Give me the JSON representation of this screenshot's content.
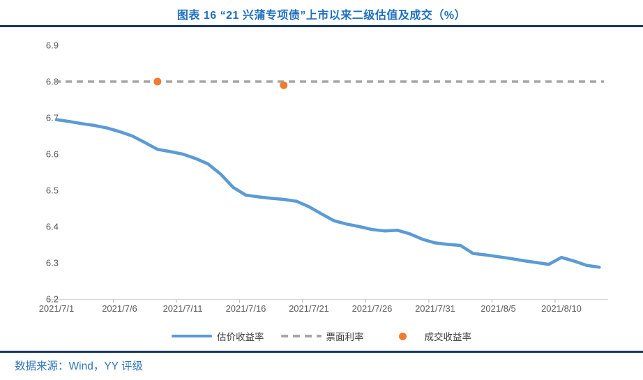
{
  "source": "数据来源：Wind，YY 评级",
  "colors": {
    "title_blue": "#1F6FBE",
    "source_blue": "#2E76B9",
    "divider_navy": "#17375E",
    "line_blue": "#5B9BD5",
    "coupon_gray": "#A6A6A6",
    "trade_orange": "#ED7D31",
    "axis_line": "#D9D9D9",
    "tick_mark": "#BFBFBF",
    "axis_text": "#595959"
  },
  "chart_data": {
    "type": "line",
    "title": "图表 16 “21 兴蒲专项债”上市以来二级估值及成交（%）",
    "x": [
      "2021/7/1",
      "2021/7/2",
      "2021/7/3",
      "2021/7/4",
      "2021/7/5",
      "2021/7/6",
      "2021/7/7",
      "2021/7/8",
      "2021/7/9",
      "2021/7/10",
      "2021/7/11",
      "2021/7/12",
      "2021/7/13",
      "2021/7/14",
      "2021/7/15",
      "2021/7/16",
      "2021/7/17",
      "2021/7/18",
      "2021/7/19",
      "2021/7/20",
      "2021/7/21",
      "2021/7/22",
      "2021/7/23",
      "2021/7/24",
      "2021/7/25",
      "2021/7/26",
      "2021/7/27",
      "2021/7/28",
      "2021/7/29",
      "2021/7/30",
      "2021/7/31",
      "2021/8/1",
      "2021/8/2",
      "2021/8/3",
      "2021/8/4",
      "2021/8/5",
      "2021/8/6",
      "2021/8/7",
      "2021/8/8",
      "2021/8/9",
      "2021/8/10",
      "2021/8/11",
      "2021/8/12",
      "2021/8/13"
    ],
    "series": [
      {
        "name": "估价收益率",
        "kind": "line",
        "color": "#5B9BD5",
        "values": [
          6.695,
          6.69,
          6.684,
          6.679,
          6.672,
          6.662,
          6.65,
          6.632,
          6.613,
          6.607,
          6.6,
          6.588,
          6.573,
          6.545,
          6.508,
          6.487,
          6.482,
          6.478,
          6.475,
          6.47,
          6.455,
          6.435,
          6.416,
          6.407,
          6.4,
          6.392,
          6.388,
          6.39,
          6.38,
          6.365,
          6.355,
          6.351,
          6.348,
          6.326,
          6.322,
          6.317,
          6.312,
          6.306,
          6.301,
          6.296,
          6.315,
          6.305,
          6.293,
          6.288
        ]
      },
      {
        "name": "票面利率",
        "kind": "dashed-horizontal",
        "color": "#A6A6A6",
        "value": 6.8
      },
      {
        "name": "成交收益率",
        "kind": "scatter",
        "color": "#ED7D31",
        "points": [
          {
            "x": "2021/7/9",
            "y": 6.8
          },
          {
            "x": "2021/7/19",
            "y": 6.79
          }
        ]
      }
    ],
    "ylim": [
      6.2,
      6.9
    ],
    "ytick_step": 0.1,
    "yticks": [
      6.2,
      6.3,
      6.4,
      6.5,
      6.6,
      6.7,
      6.8,
      6.9
    ],
    "xtick_every": 5,
    "xtick_labels": [
      "2021/7/1",
      "2021/7/6",
      "2021/7/11",
      "2021/7/16",
      "2021/7/21",
      "2021/7/26",
      "2021/7/31",
      "2021/8/5",
      "2021/8/10"
    ],
    "grid": false,
    "legend_position": "bottom"
  }
}
